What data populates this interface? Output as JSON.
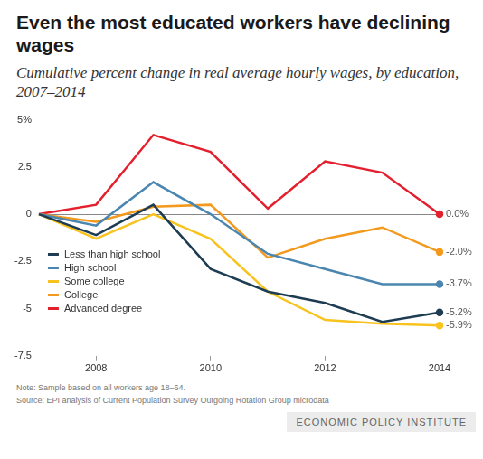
{
  "chart_data": {
    "type": "line",
    "title": "Even the most educated workers have declining wages",
    "subtitle": "Cumulative percent change in real average hourly wages, by education, 2007–2014",
    "note": "Note: Sample based on all workers age 18–64.",
    "source": "Source: EPI analysis of Current Population Survey Outgoing Rotation Group microdata",
    "credit": "ECONOMIC POLICY INSTITUTE",
    "categories": [
      null,
      "2008",
      null,
      "2010",
      null,
      "2012",
      null,
      "2014"
    ],
    "series": [
      {
        "name": "Less than high school",
        "color": "#1e3c52",
        "values": [
          0,
          -1.1,
          0.5,
          -2.9,
          -4.1,
          -4.7,
          -5.7,
          -5.2
        ],
        "value_labels": [
          null,
          null,
          null,
          null,
          null,
          null,
          null,
          "-5.2%"
        ]
      },
      {
        "name": "High school",
        "color": "#4a86b0",
        "values": [
          0,
          -0.6,
          1.7,
          0.0,
          -2.1,
          -2.9,
          -3.7,
          -3.7
        ],
        "value_labels": [
          null,
          null,
          null,
          null,
          null,
          null,
          null,
          "-3.7%"
        ]
      },
      {
        "name": "Some college",
        "color": "#f9c31f",
        "values": [
          0,
          -1.3,
          0.0,
          -1.3,
          -4.1,
          -5.6,
          -5.8,
          -5.9
        ],
        "value_labels": [
          null,
          null,
          null,
          null,
          null,
          null,
          null,
          "-5.9%"
        ]
      },
      {
        "name": "College",
        "color": "#f39a1e",
        "values": [
          0,
          -0.4,
          0.4,
          0.5,
          -2.3,
          -1.3,
          -0.7,
          -2.0
        ],
        "value_labels": [
          null,
          null,
          null,
          null,
          null,
          null,
          null,
          "-2.0%"
        ]
      },
      {
        "name": "Advanced degree",
        "color": "#e5202e",
        "values": [
          0,
          0.5,
          4.2,
          3.3,
          0.3,
          2.8,
          2.2,
          0.0
        ],
        "value_labels": [
          null,
          null,
          null,
          null,
          null,
          null,
          null,
          "0.0%"
        ]
      }
    ],
    "ylim": [
      -7.5,
      5
    ],
    "yticks": [
      -7.5,
      -5,
      -2.5,
      0,
      2.5,
      {
        "value": 5,
        "label": "5%"
      }
    ],
    "grid": false,
    "legend": "lower left",
    "data_labels": true
  }
}
